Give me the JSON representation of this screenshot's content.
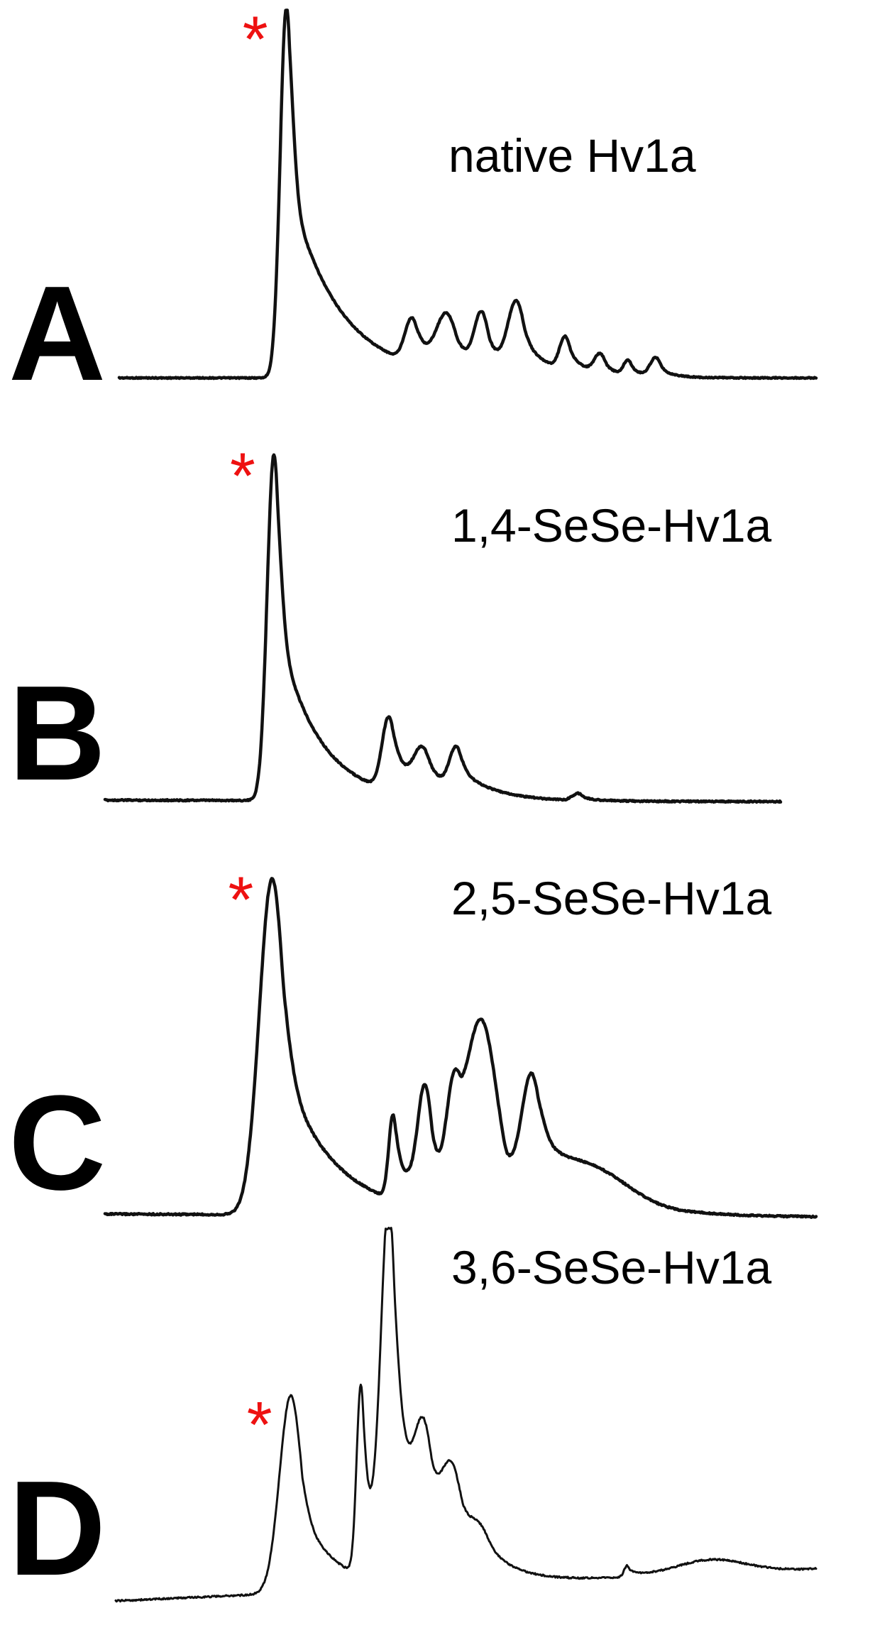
{
  "chart_data": {
    "type": "line",
    "colors": {
      "trace": "#111111",
      "marker": "#ee1111",
      "letter": "#000000"
    },
    "panels": [
      {
        "letter": "A",
        "label": "native Hv1a",
        "marker": "*",
        "peak_index": 0,
        "baseline": 0.03,
        "peaks": [
          {
            "x": 0.24,
            "h": 1.0,
            "w": 0.009,
            "t": 0.07
          },
          {
            "x": 0.42,
            "h": 0.12,
            "w": 0.01,
            "t": 0.05
          },
          {
            "x": 0.47,
            "h": 0.13,
            "w": 0.014,
            "t": 0.04
          },
          {
            "x": 0.52,
            "h": 0.14,
            "w": 0.01,
            "t": 0.03
          },
          {
            "x": 0.57,
            "h": 0.18,
            "w": 0.012,
            "t": 0.04
          },
          {
            "x": 0.64,
            "h": 0.09,
            "w": 0.008,
            "t": 0.03
          },
          {
            "x": 0.69,
            "h": 0.05,
            "w": 0.008,
            "t": 0.02
          },
          {
            "x": 0.73,
            "h": 0.04,
            "w": 0.006,
            "t": 0.02
          },
          {
            "x": 0.77,
            "h": 0.05,
            "w": 0.008,
            "t": 0.02
          }
        ]
      },
      {
        "letter": "B",
        "label": "1,4-SeSe-Hv1a",
        "marker": "*",
        "peak_index": 0,
        "baseline": 0.0,
        "peaks": [
          {
            "x": 0.25,
            "h": 1.0,
            "w": 0.01,
            "t": 0.06
          },
          {
            "x": 0.42,
            "h": 0.21,
            "w": 0.01,
            "t": 0.05
          },
          {
            "x": 0.47,
            "h": 0.1,
            "w": 0.012,
            "t": 0.04
          },
          {
            "x": 0.52,
            "h": 0.12,
            "w": 0.01,
            "t": 0.05
          },
          {
            "x": 0.7,
            "h": 0.02,
            "w": 0.008,
            "t": 0.02
          }
        ]
      },
      {
        "letter": "C",
        "label": "2,5-SeSe-Hv1a",
        "marker": "*",
        "peak_index": 0,
        "baseline": 0.0,
        "peaks": [
          {
            "x": 0.235,
            "h": 1.0,
            "w": 0.018,
            "t": 0.07
          },
          {
            "x": 0.405,
            "h": 0.25,
            "w": 0.006,
            "t": 0.04
          },
          {
            "x": 0.45,
            "h": 0.32,
            "w": 0.01,
            "t": 0.03
          },
          {
            "x": 0.49,
            "h": 0.25,
            "w": 0.01,
            "t": 0.03
          },
          {
            "x": 0.53,
            "h": 0.52,
            "w": 0.022,
            "t": 0.04
          },
          {
            "x": 0.6,
            "h": 0.35,
            "w": 0.014,
            "t": 0.08
          },
          {
            "x": 0.69,
            "h": 0.08,
            "w": 0.05,
            "t": 0.05
          }
        ]
      },
      {
        "letter": "D",
        "label": "3,6-SeSe-Hv1a",
        "marker": "*",
        "peak_index": 0,
        "baseline": 0.0,
        "peaks": [
          {
            "x": 0.25,
            "h": 0.56,
            "w": 0.016,
            "t": 0.05
          },
          {
            "x": 0.35,
            "h": 0.54,
            "w": 0.006,
            "t": 0.03
          },
          {
            "x": 0.39,
            "h": 1.0,
            "w": 0.011,
            "t": 0.05
          },
          {
            "x": 0.44,
            "h": 0.25,
            "w": 0.012,
            "t": 0.04
          },
          {
            "x": 0.48,
            "h": 0.2,
            "w": 0.014,
            "t": 0.04
          },
          {
            "x": 0.52,
            "h": 0.07,
            "w": 0.015,
            "t": 0.04
          },
          {
            "x": 0.73,
            "h": 0.03,
            "w": 0.004,
            "t": 0.02
          },
          {
            "x": 0.85,
            "h": 0.04,
            "w": 0.05,
            "t": 0.05
          }
        ]
      }
    ]
  }
}
